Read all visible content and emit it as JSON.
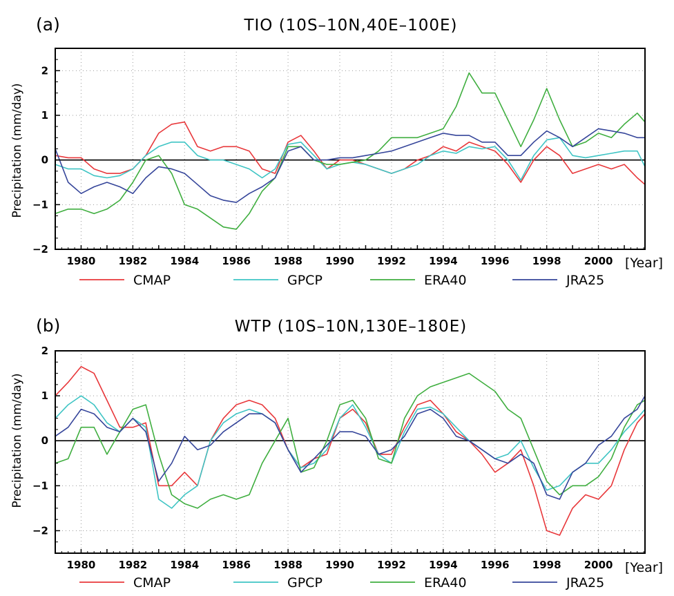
{
  "series_meta": [
    {
      "name": "CMAP",
      "color": "#e8373a"
    },
    {
      "name": "GPCP",
      "color": "#3ec4c4"
    },
    {
      "name": "ERA40",
      "color": "#3fae3f"
    },
    {
      "name": "JRA25",
      "color": "#35459a"
    }
  ],
  "chart_data": [
    {
      "type": "line",
      "panel_label": "(a)",
      "title": "TIO (10S–10N,40E–100E)",
      "xlabel": "[Year]",
      "ylabel": "Precipitation (mm/day)",
      "xlim": [
        1979,
        2001.8
      ],
      "ylim": [
        -2,
        2.5
      ],
      "xticks": [
        1980,
        1982,
        1984,
        1986,
        1988,
        1990,
        1992,
        1994,
        1996,
        1998,
        2000
      ],
      "yticks": [
        -2,
        -1,
        0,
        1,
        2
      ],
      "grid": true,
      "legend_position": "below",
      "series": [
        {
          "name": "CMAP",
          "x": [
            1979,
            1979.5,
            1980,
            1980.5,
            1981,
            1981.5,
            1982,
            1982.5,
            1983,
            1983.5,
            1984,
            1984.5,
            1985,
            1985.5,
            1986,
            1986.5,
            1987,
            1987.5,
            1988,
            1988.5,
            1989,
            1989.5,
            1990,
            1990.5,
            1991,
            1991.5,
            1992,
            1992.5,
            1993,
            1993.5,
            1994,
            1994.5,
            1995,
            1995.5,
            1996,
            1996.5,
            1997,
            1997.5,
            1998,
            1998.5,
            1999,
            1999.5,
            2000,
            2000.5,
            2001,
            2001.5,
            2001.8
          ],
          "y": [
            0.1,
            0.05,
            0.05,
            -0.2,
            -0.3,
            -0.3,
            -0.2,
            0.1,
            0.6,
            0.8,
            0.85,
            0.3,
            0.2,
            0.3,
            0.3,
            0.2,
            -0.2,
            -0.3,
            0.4,
            0.55,
            0.2,
            -0.2,
            0.0,
            0.0,
            -0.1,
            -0.2,
            -0.3,
            -0.2,
            0.0,
            0.1,
            0.3,
            0.2,
            0.4,
            0.3,
            0.2,
            -0.1,
            -0.5,
            0.0,
            0.3,
            0.1,
            -0.3,
            -0.2,
            -0.1,
            -0.2,
            -0.1,
            -0.4,
            -0.55
          ]
        },
        {
          "name": "GPCP",
          "x": [
            1979,
            1979.5,
            1980,
            1980.5,
            1981,
            1981.5,
            1982,
            1982.5,
            1983,
            1983.5,
            1984,
            1984.5,
            1985,
            1985.5,
            1986,
            1986.5,
            1987,
            1987.5,
            1988,
            1988.5,
            1989,
            1989.5,
            1990,
            1990.5,
            1991,
            1991.5,
            1992,
            1992.5,
            1993,
            1993.5,
            1994,
            1994.5,
            1995,
            1995.5,
            1996,
            1996.5,
            1997,
            1997.5,
            1998,
            1998.5,
            1999,
            1999.5,
            2000,
            2000.5,
            2001,
            2001.5,
            2001.8
          ],
          "y": [
            -0.1,
            -0.2,
            -0.2,
            -0.35,
            -0.4,
            -0.35,
            -0.2,
            0.1,
            0.3,
            0.4,
            0.4,
            0.1,
            0.0,
            0.0,
            -0.1,
            -0.2,
            -0.4,
            -0.2,
            0.35,
            0.4,
            0.1,
            -0.2,
            -0.1,
            -0.05,
            -0.1,
            -0.2,
            -0.3,
            -0.2,
            -0.1,
            0.1,
            0.2,
            0.15,
            0.3,
            0.25,
            0.3,
            0.0,
            -0.45,
            0.1,
            0.45,
            0.5,
            0.1,
            0.05,
            0.1,
            0.15,
            0.2,
            0.2,
            -0.15
          ]
        },
        {
          "name": "ERA40",
          "x": [
            1979,
            1979.5,
            1980,
            1980.5,
            1981,
            1981.5,
            1982,
            1982.5,
            1983,
            1983.5,
            1984,
            1984.5,
            1985,
            1985.5,
            1986,
            1986.5,
            1987,
            1987.5,
            1988,
            1988.5,
            1989,
            1989.5,
            1990,
            1990.5,
            1991,
            1991.5,
            1992,
            1992.5,
            1993,
            1993.5,
            1994,
            1994.5,
            1995,
            1995.5,
            1996,
            1996.5,
            1997,
            1997.5,
            1998,
            1998.5,
            1999,
            1999.5,
            2000,
            2000.5,
            2001,
            2001.5,
            2001.8
          ],
          "y": [
            -1.2,
            -1.1,
            -1.1,
            -1.2,
            -1.1,
            -0.9,
            -0.5,
            0.0,
            0.1,
            -0.3,
            -1.0,
            -1.1,
            -1.3,
            -1.5,
            -1.55,
            -1.2,
            -0.7,
            -0.4,
            0.3,
            0.3,
            0.0,
            -0.1,
            -0.1,
            -0.05,
            0.0,
            0.2,
            0.5,
            0.5,
            0.5,
            0.6,
            0.7,
            1.2,
            1.95,
            1.5,
            1.5,
            0.9,
            0.3,
            0.9,
            1.6,
            0.9,
            0.3,
            0.4,
            0.6,
            0.5,
            0.8,
            1.05,
            0.85
          ]
        },
        {
          "name": "JRA25",
          "x": [
            1979,
            1979.5,
            1980,
            1980.5,
            1981,
            1981.5,
            1982,
            1982.5,
            1983,
            1983.5,
            1984,
            1984.5,
            1985,
            1985.5,
            1986,
            1986.5,
            1987,
            1987.5,
            1988,
            1988.5,
            1989,
            1989.5,
            1990,
            1990.5,
            1991,
            1991.5,
            1992,
            1992.5,
            1993,
            1993.5,
            1994,
            1994.5,
            1995,
            1995.5,
            1996,
            1996.5,
            1997,
            1997.5,
            1998,
            1998.5,
            1999,
            1999.5,
            2000,
            2000.5,
            2001,
            2001.5,
            2001.8
          ],
          "y": [
            0.25,
            -0.5,
            -0.75,
            -0.6,
            -0.5,
            -0.6,
            -0.75,
            -0.4,
            -0.15,
            -0.2,
            -0.3,
            -0.55,
            -0.8,
            -0.9,
            -0.95,
            -0.75,
            -0.6,
            -0.4,
            0.2,
            0.3,
            0.0,
            0.0,
            0.05,
            0.05,
            0.1,
            0.15,
            0.2,
            0.3,
            0.4,
            0.5,
            0.6,
            0.55,
            0.55,
            0.4,
            0.4,
            0.1,
            0.1,
            0.4,
            0.65,
            0.5,
            0.3,
            0.5,
            0.7,
            0.65,
            0.6,
            0.5,
            0.5
          ]
        }
      ]
    },
    {
      "type": "line",
      "panel_label": "(b)",
      "title": "WTP (10S–10N,130E–180E)",
      "xlabel": "[Year]",
      "ylabel": "Precipitation (mm/day)",
      "xlim": [
        1979,
        2001.8
      ],
      "ylim": [
        -2.5,
        2
      ],
      "xticks": [
        1980,
        1982,
        1984,
        1986,
        1988,
        1990,
        1992,
        1994,
        1996,
        1998,
        2000
      ],
      "yticks": [
        -2,
        -1,
        0,
        1,
        2
      ],
      "grid": true,
      "legend_position": "below",
      "series": [
        {
          "name": "CMAP",
          "x": [
            1979,
            1979.5,
            1980,
            1980.5,
            1981,
            1981.5,
            1982,
            1982.5,
            1983,
            1983.5,
            1984,
            1984.5,
            1985,
            1985.5,
            1986,
            1986.5,
            1987,
            1987.5,
            1988,
            1988.5,
            1989,
            1989.5,
            1990,
            1990.5,
            1991,
            1991.5,
            1992,
            1992.5,
            1993,
            1993.5,
            1994,
            1994.5,
            1995,
            1995.5,
            1996,
            1996.5,
            1997,
            1997.5,
            1998,
            1998.5,
            1999,
            1999.5,
            2000,
            2000.5,
            2001,
            2001.5,
            2001.8
          ],
          "y": [
            1.0,
            1.3,
            1.65,
            1.5,
            0.9,
            0.3,
            0.3,
            0.4,
            -1.0,
            -1.0,
            -0.7,
            -1.0,
            0.0,
            0.5,
            0.8,
            0.9,
            0.8,
            0.5,
            -0.2,
            -0.6,
            -0.4,
            -0.3,
            0.5,
            0.7,
            0.4,
            -0.3,
            -0.3,
            0.3,
            0.8,
            0.9,
            0.6,
            0.2,
            0.0,
            -0.3,
            -0.7,
            -0.5,
            -0.2,
            -1.0,
            -2.0,
            -2.1,
            -1.5,
            -1.2,
            -1.3,
            -1.0,
            -0.2,
            0.4,
            0.6
          ]
        },
        {
          "name": "GPCP",
          "x": [
            1979,
            1979.5,
            1980,
            1980.5,
            1981,
            1981.5,
            1982,
            1982.5,
            1983,
            1983.5,
            1984,
            1984.5,
            1985,
            1985.5,
            1986,
            1986.5,
            1987,
            1987.5,
            1988,
            1988.5,
            1989,
            1989.5,
            1990,
            1990.5,
            1991,
            1991.5,
            1992,
            1992.5,
            1993,
            1993.5,
            1994,
            1994.5,
            1995,
            1995.5,
            1996,
            1996.5,
            1997,
            1997.5,
            1998,
            1998.5,
            1999,
            1999.5,
            2000,
            2000.5,
            2001,
            2001.5,
            2001.8
          ],
          "y": [
            0.5,
            0.8,
            1.0,
            0.8,
            0.4,
            0.2,
            0.5,
            0.3,
            -1.3,
            -1.5,
            -1.2,
            -1.0,
            0.0,
            0.4,
            0.6,
            0.7,
            0.6,
            0.4,
            -0.2,
            -0.6,
            -0.5,
            -0.2,
            0.5,
            0.8,
            0.3,
            -0.3,
            -0.5,
            0.2,
            0.7,
            0.75,
            0.6,
            0.3,
            0.0,
            -0.2,
            -0.4,
            -0.3,
            0.0,
            -0.6,
            -1.1,
            -1.0,
            -0.7,
            -0.5,
            -0.5,
            -0.2,
            0.2,
            0.5,
            0.7
          ]
        },
        {
          "name": "ERA40",
          "x": [
            1979,
            1979.5,
            1980,
            1980.5,
            1981,
            1981.5,
            1982,
            1982.5,
            1983,
            1983.5,
            1984,
            1984.5,
            1985,
            1985.5,
            1986,
            1986.5,
            1987,
            1987.5,
            1988,
            1988.5,
            1989,
            1989.5,
            1990,
            1990.5,
            1991,
            1991.5,
            1992,
            1992.5,
            1993,
            1993.5,
            1994,
            1994.5,
            1995,
            1995.5,
            1996,
            1996.5,
            1997,
            1997.5,
            1998,
            1998.5,
            1999,
            1999.5,
            2000,
            2000.5,
            2001,
            2001.5,
            2001.8
          ],
          "y": [
            -0.5,
            -0.4,
            0.3,
            0.3,
            -0.3,
            0.2,
            0.7,
            0.8,
            -0.3,
            -1.2,
            -1.4,
            -1.5,
            -1.3,
            -1.2,
            -1.3,
            -1.2,
            -0.5,
            0.0,
            0.5,
            -0.7,
            -0.6,
            0.0,
            0.8,
            0.9,
            0.5,
            -0.4,
            -0.5,
            0.5,
            1.0,
            1.2,
            1.3,
            1.4,
            1.5,
            1.3,
            1.1,
            0.7,
            0.5,
            -0.2,
            -0.9,
            -1.2,
            -1.0,
            -1.0,
            -0.8,
            -0.4,
            0.3,
            0.8,
            0.9
          ]
        },
        {
          "name": "JRA25",
          "x": [
            1979,
            1979.5,
            1980,
            1980.5,
            1981,
            1981.5,
            1982,
            1982.5,
            1983,
            1983.5,
            1984,
            1984.5,
            1985,
            1985.5,
            1986,
            1986.5,
            1987,
            1987.5,
            1988,
            1988.5,
            1989,
            1989.5,
            1990,
            1990.5,
            1991,
            1991.5,
            1992,
            1992.5,
            1993,
            1993.5,
            1994,
            1994.5,
            1995,
            1995.5,
            1996,
            1996.5,
            1997,
            1997.5,
            1998,
            1998.5,
            1999,
            1999.5,
            2000,
            2000.5,
            2001,
            2001.5,
            2001.8
          ],
          "y": [
            0.1,
            0.3,
            0.7,
            0.6,
            0.3,
            0.2,
            0.5,
            0.2,
            -0.9,
            -0.5,
            0.1,
            -0.2,
            -0.1,
            0.2,
            0.4,
            0.6,
            0.6,
            0.4,
            -0.2,
            -0.7,
            -0.4,
            -0.1,
            0.2,
            0.2,
            0.1,
            -0.3,
            -0.2,
            0.1,
            0.6,
            0.7,
            0.5,
            0.1,
            0.0,
            -0.2,
            -0.4,
            -0.5,
            -0.3,
            -0.5,
            -1.2,
            -1.3,
            -0.7,
            -0.5,
            -0.1,
            0.1,
            0.5,
            0.7,
            1.0
          ]
        }
      ]
    }
  ]
}
